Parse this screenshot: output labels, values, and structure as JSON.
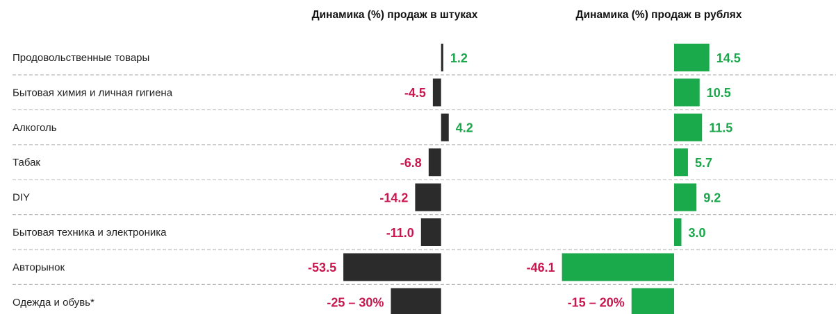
{
  "chart_data": [
    {
      "type": "bar",
      "orientation": "horizontal",
      "title": "Динамика (%) продаж в штуках",
      "categories": [
        "Продовольственные товары",
        "Бытовая химия и личная гигиена",
        "Алкоголь",
        "Табак",
        "DIY",
        "Бытовая техника и электроника",
        "Авторынок",
        "Одежда и обувь*"
      ],
      "values": [
        1.2,
        -4.5,
        4.2,
        -6.8,
        -14.2,
        -11.0,
        -53.5,
        -27.5
      ],
      "value_labels": [
        "1.2",
        "-4.5",
        "4.2",
        "-6.8",
        "-14.2",
        "-11.0",
        "-53.5",
        "-25 – 30%"
      ],
      "color": "#2b2b2b",
      "positive_label_color": "#1aa64a",
      "negative_label_color": "#c8174f",
      "xlim": [
        -60,
        10
      ]
    },
    {
      "type": "bar",
      "orientation": "horizontal",
      "title": "Динамика (%) продаж в рублях",
      "values": [
        14.5,
        10.5,
        11.5,
        5.7,
        9.2,
        3.0,
        -46.1,
        -17.5
      ],
      "value_labels": [
        "14.5",
        "10.5",
        "11.5",
        "5.7",
        "9.2",
        "3.0",
        "-46.1",
        "-15 – 20%"
      ],
      "color": "#1aaa4b",
      "positive_label_color": "#1aa64a",
      "negative_label_color": "#c8174f",
      "xlim": [
        -50,
        20
      ]
    }
  ]
}
